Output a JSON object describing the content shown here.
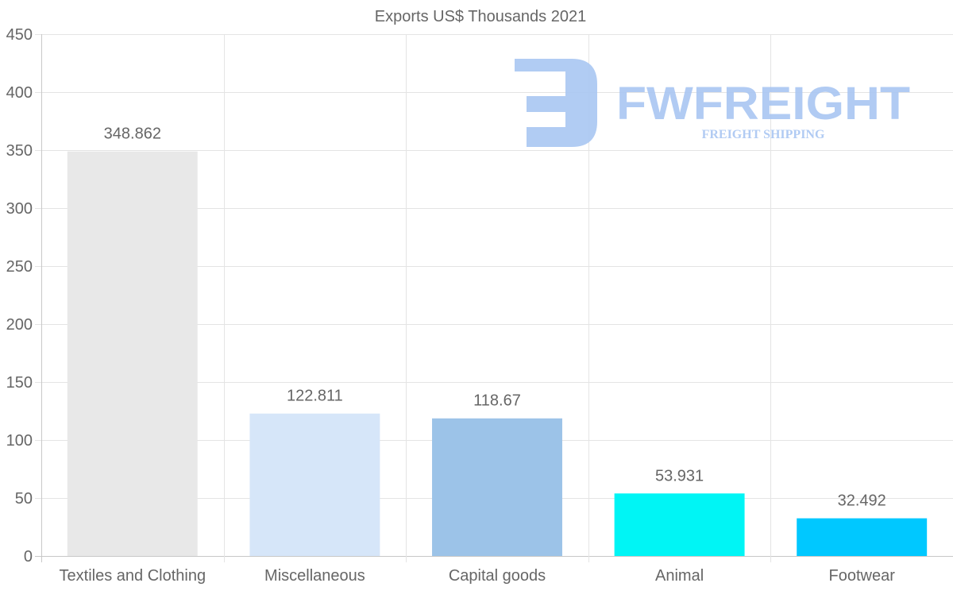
{
  "chart_data": {
    "type": "bar",
    "title": "Exports US$ Thousands 2021",
    "xlabel": "",
    "ylabel": "",
    "categories": [
      "Textiles and Clothing",
      "Miscellaneous",
      "Capital goods",
      "Animal",
      "Footwear"
    ],
    "values": [
      348.862,
      122.811,
      118.67,
      53.931,
      32.492
    ],
    "value_labels": [
      "348.862",
      "122.811",
      "118.67",
      "53.931",
      "32.492"
    ],
    "colors": [
      "#e8e8e8",
      "#d6e6f9",
      "#9cc3e8",
      "#00f5f5",
      "#00c8ff"
    ],
    "ylim": [
      0,
      450
    ],
    "yticks": [
      0,
      50,
      100,
      150,
      200,
      250,
      300,
      350,
      400,
      450
    ],
    "grid": true,
    "legend": "none"
  },
  "watermark": {
    "brand": "FWFREIGHT",
    "tagline": "FREIGHT SHIPPING",
    "color": "#a9c6f2"
  }
}
